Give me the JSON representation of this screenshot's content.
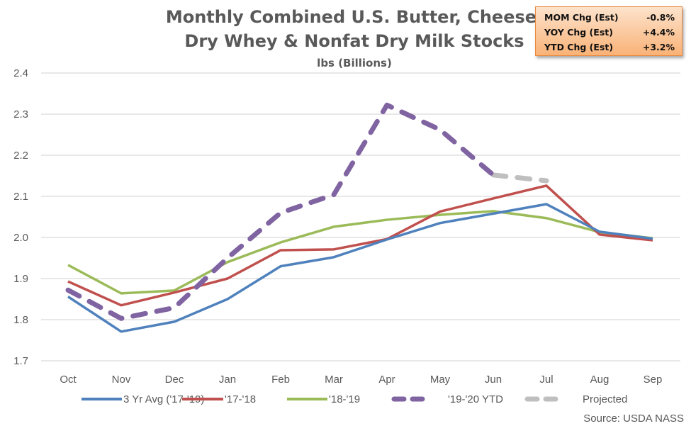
{
  "chart_data": {
    "type": "line",
    "title": "Monthly Combined U.S. Butter, Cheese, Dry Whey & Nonfat Dry Milk Stocks",
    "title_lines": [
      "Monthly Combined U.S. Butter, Cheese,",
      "Dry Whey & Nonfat Dry Milk Stocks"
    ],
    "subtitle": "lbs (Billions)",
    "xlabel": "",
    "ylabel": "",
    "categories": [
      "Oct",
      "Nov",
      "Dec",
      "Jan",
      "Feb",
      "Mar",
      "Apr",
      "May",
      "Jun",
      "Jul",
      "Aug",
      "Sep"
    ],
    "ylim": [
      1.7,
      2.4
    ],
    "yticks": [
      "1.7",
      "1.8",
      "1.9",
      "2.0",
      "2.1",
      "2.2",
      "2.3",
      "2.4"
    ],
    "grid": true,
    "legend_position": "bottom",
    "series": [
      {
        "name": "3 Yr Avg ('17-'19)",
        "color": "#4f81bd",
        "style": "solid",
        "values": [
          1.856,
          1.771,
          1.795,
          1.85,
          1.93,
          1.952,
          1.995,
          2.035,
          2.058,
          2.081,
          2.014,
          1.997
        ]
      },
      {
        "name": "'17-'18",
        "color": "#c0504d",
        "style": "solid",
        "values": [
          1.893,
          1.835,
          1.866,
          1.9,
          1.969,
          1.971,
          1.996,
          2.063,
          2.095,
          2.126,
          2.007,
          1.993
        ]
      },
      {
        "name": "'18-'19",
        "color": "#9bbb59",
        "style": "solid",
        "values": [
          1.933,
          1.864,
          1.871,
          1.94,
          1.988,
          2.026,
          2.043,
          2.055,
          2.064,
          2.047,
          2.013,
          1.998
        ]
      },
      {
        "name": "'19-'20 YTD",
        "color": "#8064a2",
        "style": "dashed",
        "values": [
          1.872,
          1.803,
          1.829,
          1.95,
          2.06,
          2.104,
          2.322,
          2.262,
          2.152,
          null,
          null,
          null
        ]
      },
      {
        "name": "Projected",
        "color": "#bfbfbf",
        "style": "dashed",
        "values": [
          null,
          null,
          null,
          null,
          null,
          null,
          null,
          null,
          2.152,
          2.138,
          null,
          null
        ]
      }
    ],
    "annotations": {
      "source": "Source: USDA NASS",
      "stats_box": [
        {
          "label": "MOM Chg (Est)",
          "value": "-0.8%"
        },
        {
          "label": "YOY Chg (Est)",
          "value": "+4.4%"
        },
        {
          "label": "YTD Chg (Est)",
          "value": "+3.2%"
        }
      ]
    }
  }
}
